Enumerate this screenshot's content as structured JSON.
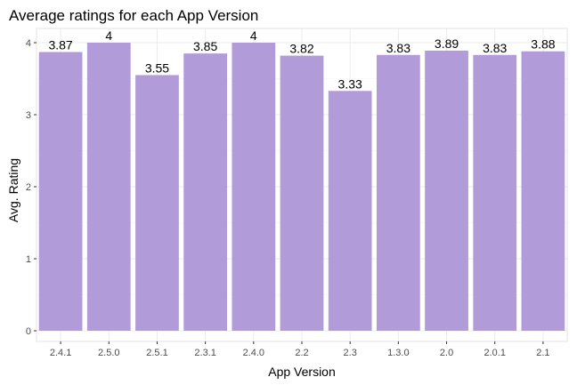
{
  "chart_data": {
    "type": "bar",
    "title": "Average ratings for each App Version",
    "xlabel": "App Version",
    "ylabel": "Avg. Rating",
    "categories": [
      "2.4.1",
      "2.5.0",
      "2.5.1",
      "2.3.1",
      "2.4.0",
      "2.2",
      "2.3",
      "1.3.0",
      "2.0",
      "2.0.1",
      "2.1"
    ],
    "values": [
      3.87,
      4,
      3.55,
      3.85,
      4,
      3.82,
      3.33,
      3.83,
      3.89,
      3.83,
      3.88
    ],
    "data_labels": [
      "3.87",
      "4",
      "3.55",
      "3.85",
      "4",
      "3.82",
      "3.33",
      "3.83",
      "3.89",
      "3.83",
      "3.88"
    ],
    "yticks": [
      0,
      1,
      2,
      3,
      4
    ],
    "ylim": [
      0,
      4.2
    ],
    "grid": true,
    "bar_color": "#b19cd9"
  }
}
